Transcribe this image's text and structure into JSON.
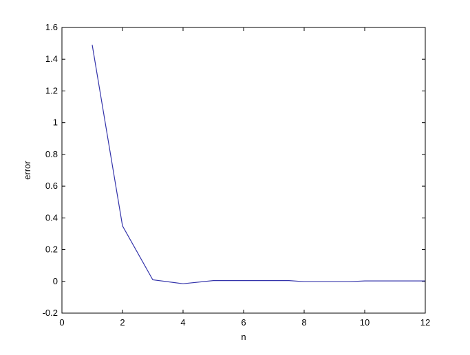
{
  "chart_data": {
    "type": "line",
    "title": "",
    "xlabel": "n",
    "ylabel": "error",
    "xlim": [
      0,
      12
    ],
    "ylim": [
      -0.2,
      1.6
    ],
    "xticks": [
      "0",
      "2",
      "4",
      "6",
      "8",
      "10",
      "12"
    ],
    "yticks": [
      "-0.2",
      "0",
      "0.2",
      "0.4",
      "0.6",
      "0.8",
      "1",
      "1.2",
      "1.4",
      "1.6"
    ],
    "grid": false,
    "series": [
      {
        "color": "#3333aa",
        "x": [
          1,
          2,
          3,
          4,
          5,
          6,
          7,
          7.5,
          8,
          9,
          9.5,
          10,
          11,
          12
        ],
        "y": [
          1.49,
          0.35,
          0.01,
          -0.015,
          0.005,
          0.005,
          0.005,
          0.005,
          -0.002,
          -0.002,
          -0.002,
          0.003,
          0.003,
          0.003
        ]
      }
    ]
  }
}
